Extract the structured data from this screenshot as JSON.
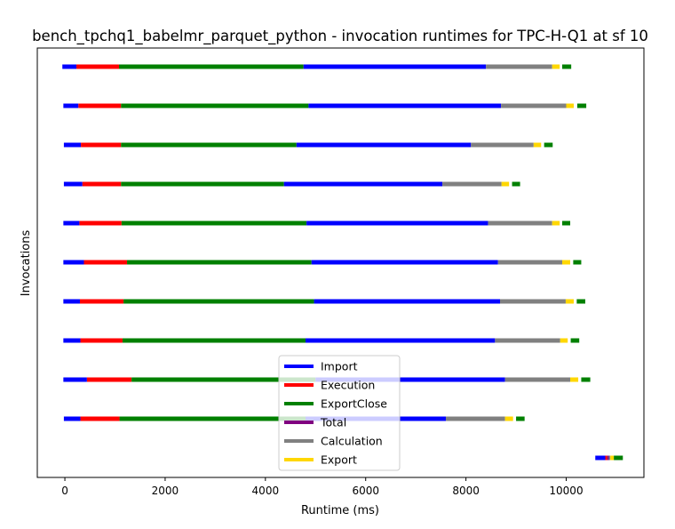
{
  "chart_data": {
    "type": "bar",
    "orientation": "horizontal-segments",
    "title": "bench_tpchq1_babelmr_parquet_python - invocation runtimes for TPC-H-Q1 at sf 10",
    "xlabel": "Runtime (ms)",
    "ylabel": "Invocations",
    "xlim": [
      -550,
      11550
    ],
    "x_ticks": [
      0,
      2000,
      4000,
      6000,
      8000,
      10000
    ],
    "x_tick_labels": [
      "0",
      "2000",
      "4000",
      "6000",
      "8000",
      "10000"
    ],
    "legend_position": "lower center",
    "legend": [
      {
        "name": "Import",
        "color": "#0000ff"
      },
      {
        "name": "Execution",
        "color": "#ff0000"
      },
      {
        "name": "ExportClose",
        "color": "#008000"
      },
      {
        "name": "Total",
        "color": "#800080"
      },
      {
        "name": "Calculation",
        "color": "#808080"
      },
      {
        "name": "Export",
        "color": "#ffd700"
      }
    ],
    "rows": [
      {
        "segments": [
          {
            "series": "Import",
            "start": -50,
            "end": 230
          },
          {
            "series": "Execution",
            "start": 230,
            "end": 1080
          },
          {
            "series": "ExportClose",
            "start": 1080,
            "end": 4760
          },
          {
            "series": "Import",
            "start": 4760,
            "end": 8400
          },
          {
            "series": "Calculation",
            "start": 8400,
            "end": 9720
          },
          {
            "series": "Export",
            "start": 9720,
            "end": 9870
          },
          {
            "series": "ExportClose",
            "start": 9920,
            "end": 10100
          }
        ]
      },
      {
        "segments": [
          {
            "series": "Import",
            "start": -30,
            "end": 270
          },
          {
            "series": "Execution",
            "start": 270,
            "end": 1120
          },
          {
            "series": "ExportClose",
            "start": 1120,
            "end": 4860
          },
          {
            "series": "Import",
            "start": 4860,
            "end": 8700
          },
          {
            "series": "Calculation",
            "start": 8700,
            "end": 10000
          },
          {
            "series": "Export",
            "start": 10000,
            "end": 10150
          },
          {
            "series": "ExportClose",
            "start": 10220,
            "end": 10400
          }
        ]
      },
      {
        "segments": [
          {
            "series": "Import",
            "start": -20,
            "end": 320
          },
          {
            "series": "Execution",
            "start": 320,
            "end": 1120
          },
          {
            "series": "ExportClose",
            "start": 1120,
            "end": 4620
          },
          {
            "series": "Import",
            "start": 4620,
            "end": 8100
          },
          {
            "series": "Calculation",
            "start": 8100,
            "end": 9350
          },
          {
            "series": "Export",
            "start": 9350,
            "end": 9500
          },
          {
            "series": "ExportClose",
            "start": 9560,
            "end": 9730
          }
        ]
      },
      {
        "segments": [
          {
            "series": "Import",
            "start": -20,
            "end": 350
          },
          {
            "series": "Execution",
            "start": 350,
            "end": 1120
          },
          {
            "series": "ExportClose",
            "start": 1120,
            "end": 4370
          },
          {
            "series": "Import",
            "start": 4370,
            "end": 7530
          },
          {
            "series": "Calculation",
            "start": 7530,
            "end": 8710
          },
          {
            "series": "Export",
            "start": 8710,
            "end": 8860
          },
          {
            "series": "ExportClose",
            "start": 8920,
            "end": 9080
          }
        ]
      },
      {
        "segments": [
          {
            "series": "Import",
            "start": -30,
            "end": 290
          },
          {
            "series": "Execution",
            "start": 290,
            "end": 1130
          },
          {
            "series": "ExportClose",
            "start": 1130,
            "end": 4820
          },
          {
            "series": "Import",
            "start": 4820,
            "end": 8440
          },
          {
            "series": "Calculation",
            "start": 8440,
            "end": 9720
          },
          {
            "series": "Export",
            "start": 9720,
            "end": 9870
          },
          {
            "series": "ExportClose",
            "start": 9920,
            "end": 10080
          }
        ]
      },
      {
        "segments": [
          {
            "series": "Import",
            "start": -30,
            "end": 380
          },
          {
            "series": "Execution",
            "start": 380,
            "end": 1240
          },
          {
            "series": "ExportClose",
            "start": 1240,
            "end": 4920
          },
          {
            "series": "Import",
            "start": 4920,
            "end": 8640
          },
          {
            "series": "Calculation",
            "start": 8640,
            "end": 9920
          },
          {
            "series": "Export",
            "start": 9920,
            "end": 10080
          },
          {
            "series": "ExportClose",
            "start": 10140,
            "end": 10300
          }
        ]
      },
      {
        "segments": [
          {
            "series": "Import",
            "start": -30,
            "end": 300
          },
          {
            "series": "Execution",
            "start": 300,
            "end": 1170
          },
          {
            "series": "ExportClose",
            "start": 1170,
            "end": 4970
          },
          {
            "series": "Import",
            "start": 4970,
            "end": 8680
          },
          {
            "series": "Calculation",
            "start": 8680,
            "end": 9990
          },
          {
            "series": "Export",
            "start": 9990,
            "end": 10150
          },
          {
            "series": "ExportClose",
            "start": 10210,
            "end": 10380
          }
        ]
      },
      {
        "segments": [
          {
            "series": "Import",
            "start": -30,
            "end": 310
          },
          {
            "series": "Execution",
            "start": 310,
            "end": 1150
          },
          {
            "series": "ExportClose",
            "start": 1150,
            "end": 4800
          },
          {
            "series": "Import",
            "start": 4800,
            "end": 8580
          },
          {
            "series": "Calculation",
            "start": 8580,
            "end": 9880
          },
          {
            "series": "Export",
            "start": 9880,
            "end": 10030
          },
          {
            "series": "ExportClose",
            "start": 10090,
            "end": 10260
          }
        ]
      },
      {
        "segments": [
          {
            "series": "Import",
            "start": -30,
            "end": 440
          },
          {
            "series": "Execution",
            "start": 440,
            "end": 1330
          },
          {
            "series": "ExportClose",
            "start": 1330,
            "end": 5000
          },
          {
            "series": "Import",
            "start": 5000,
            "end": 8780
          },
          {
            "series": "Calculation",
            "start": 8780,
            "end": 10080
          },
          {
            "series": "Export",
            "start": 10080,
            "end": 10240
          },
          {
            "series": "ExportClose",
            "start": 10300,
            "end": 10480
          }
        ]
      },
      {
        "segments": [
          {
            "series": "Import",
            "start": -20,
            "end": 310
          },
          {
            "series": "Execution",
            "start": 310,
            "end": 1090
          },
          {
            "series": "ExportClose",
            "start": 1090,
            "end": 4800
          },
          {
            "series": "Import",
            "start": 4800,
            "end": 7600
          },
          {
            "series": "Calculation",
            "start": 7600,
            "end": 8780
          },
          {
            "series": "Export",
            "start": 8780,
            "end": 8940
          },
          {
            "series": "ExportClose",
            "start": 9000,
            "end": 9170
          }
        ]
      },
      {
        "segments": [
          {
            "series": "Import",
            "start": 10580,
            "end": 10780
          },
          {
            "series": "Execution",
            "start": 10780,
            "end": 10820
          },
          {
            "series": "Total",
            "start": 10820,
            "end": 10850
          },
          {
            "series": "Calculation",
            "start": 10850,
            "end": 10880
          },
          {
            "series": "Export",
            "start": 10880,
            "end": 10950
          },
          {
            "series": "ExportClose",
            "start": 10950,
            "end": 11130
          }
        ]
      }
    ]
  }
}
